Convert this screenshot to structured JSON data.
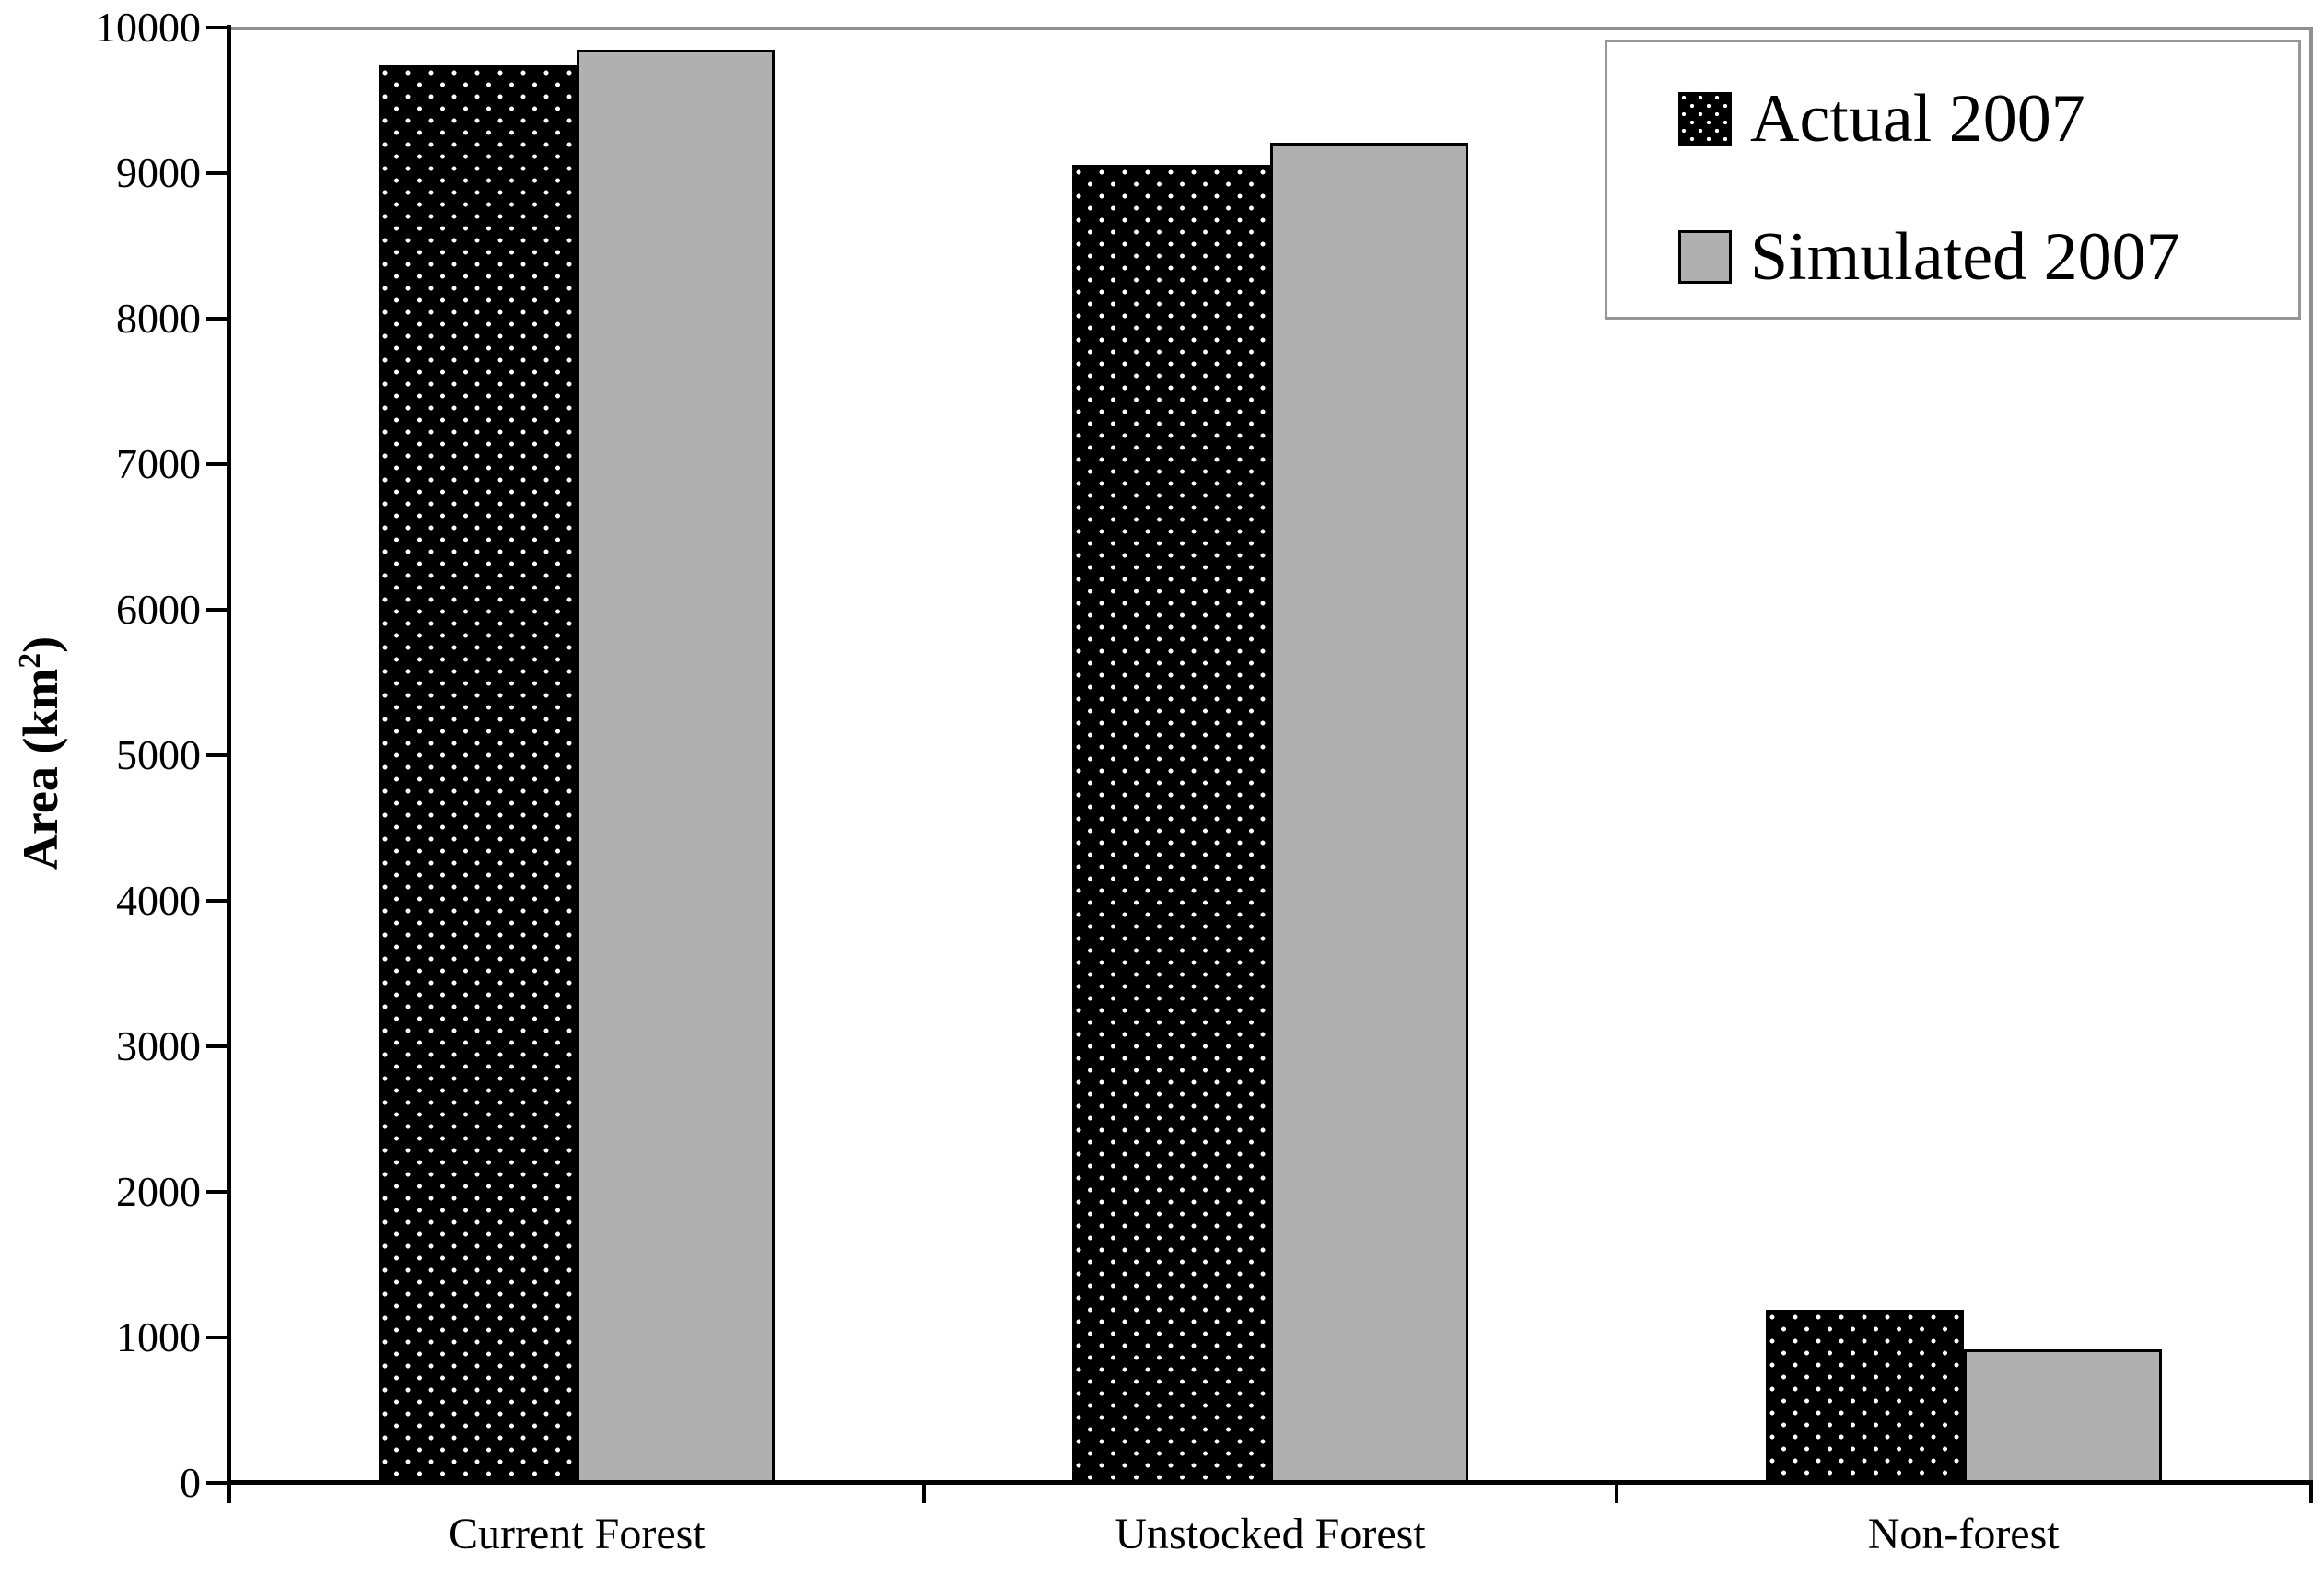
{
  "chart_data": {
    "type": "bar",
    "title": "",
    "categories": [
      "Current Forest",
      "Unstocked Forest",
      "Non-forest"
    ],
    "series": [
      {
        "name": "Actual 2007",
        "pattern": "black-with-white-dots",
        "values": [
          9740,
          9060,
          1190
        ]
      },
      {
        "name": "Simulated 2007",
        "pattern": "solid-gray",
        "values": [
          9850,
          9210,
          920
        ]
      }
    ],
    "xlabel": "",
    "ylabel": "Area (km²)",
    "ylim": [
      0,
      10000
    ],
    "yticks": [
      0,
      1000,
      2000,
      3000,
      4000,
      5000,
      6000,
      7000,
      8000,
      9000,
      10000
    ],
    "grid": false,
    "legend_position": "top-right",
    "colors": {
      "actual_fill": "#000000",
      "actual_dots": "#ffffff",
      "simulated_fill": "#b0b0b0",
      "bar_border": "#000000",
      "axis": "#000000",
      "plot_border": "#8f8f8f",
      "background": "#ffffff",
      "text": "#000000"
    }
  }
}
